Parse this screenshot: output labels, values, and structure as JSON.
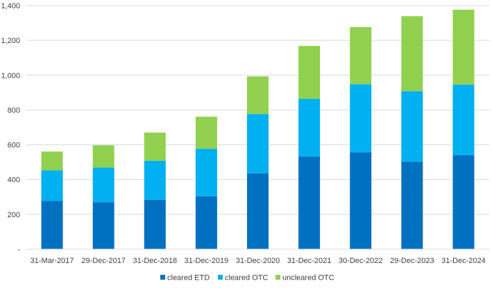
{
  "chart_data": {
    "type": "bar",
    "stacked": true,
    "title": "",
    "xlabel": "",
    "ylabel": "",
    "categories": [
      "31-Mar-2017",
      "29-Dec-2017",
      "31-Dec-2018",
      "31-Dec-2019",
      "31-Dec-2020",
      "31-Dec-2021",
      "30-Dec-2022",
      "29-Dec-2023",
      "31-Dec-2024"
    ],
    "series": [
      {
        "name": "cleared ETD",
        "color": "#0070c0",
        "values": [
          277,
          270,
          284,
          304,
          436,
          532,
          556,
          503,
          540
        ]
      },
      {
        "name": "cleared OTC",
        "color": "#00b0f0",
        "values": [
          176,
          199,
          224,
          273,
          341,
          332,
          392,
          405,
          405
        ]
      },
      {
        "name": "uncleared OTC",
        "color": "#92d050",
        "values": [
          108,
          128,
          162,
          184,
          216,
          304,
          328,
          431,
          431
        ]
      }
    ],
    "ylim": [
      0,
      1400
    ],
    "yticks": [
      0,
      200,
      400,
      600,
      800,
      1000,
      1200,
      1400
    ],
    "ytick_labels": [
      "-",
      "200",
      "400",
      "600",
      "800",
      "1,000",
      "1,200",
      "1,400"
    ],
    "grid": true,
    "legend_position": "bottom"
  }
}
